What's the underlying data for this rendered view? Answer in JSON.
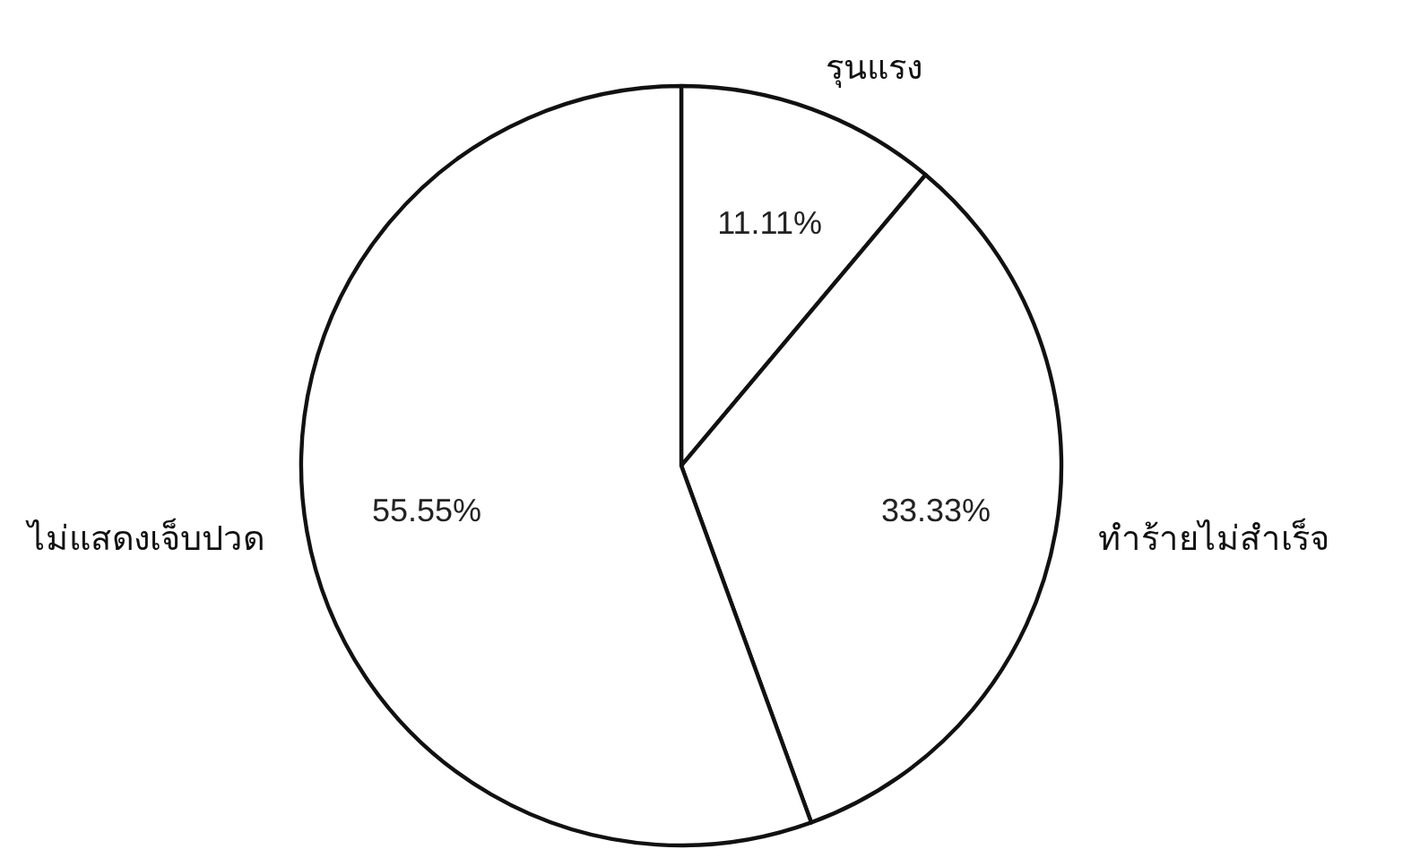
{
  "chart_data": {
    "type": "pie",
    "categories": [
      "รุนแรง",
      "ทำร้ายไม่สำเร็จ",
      "ไม่แสดงเจ็บปวด"
    ],
    "values": [
      11.11,
      33.33,
      55.55
    ],
    "value_labels": [
      "11.11%",
      "33.33%",
      "55.55%"
    ],
    "colors": [
      "#ffffff",
      "#ffffff",
      "#ffffff"
    ]
  }
}
